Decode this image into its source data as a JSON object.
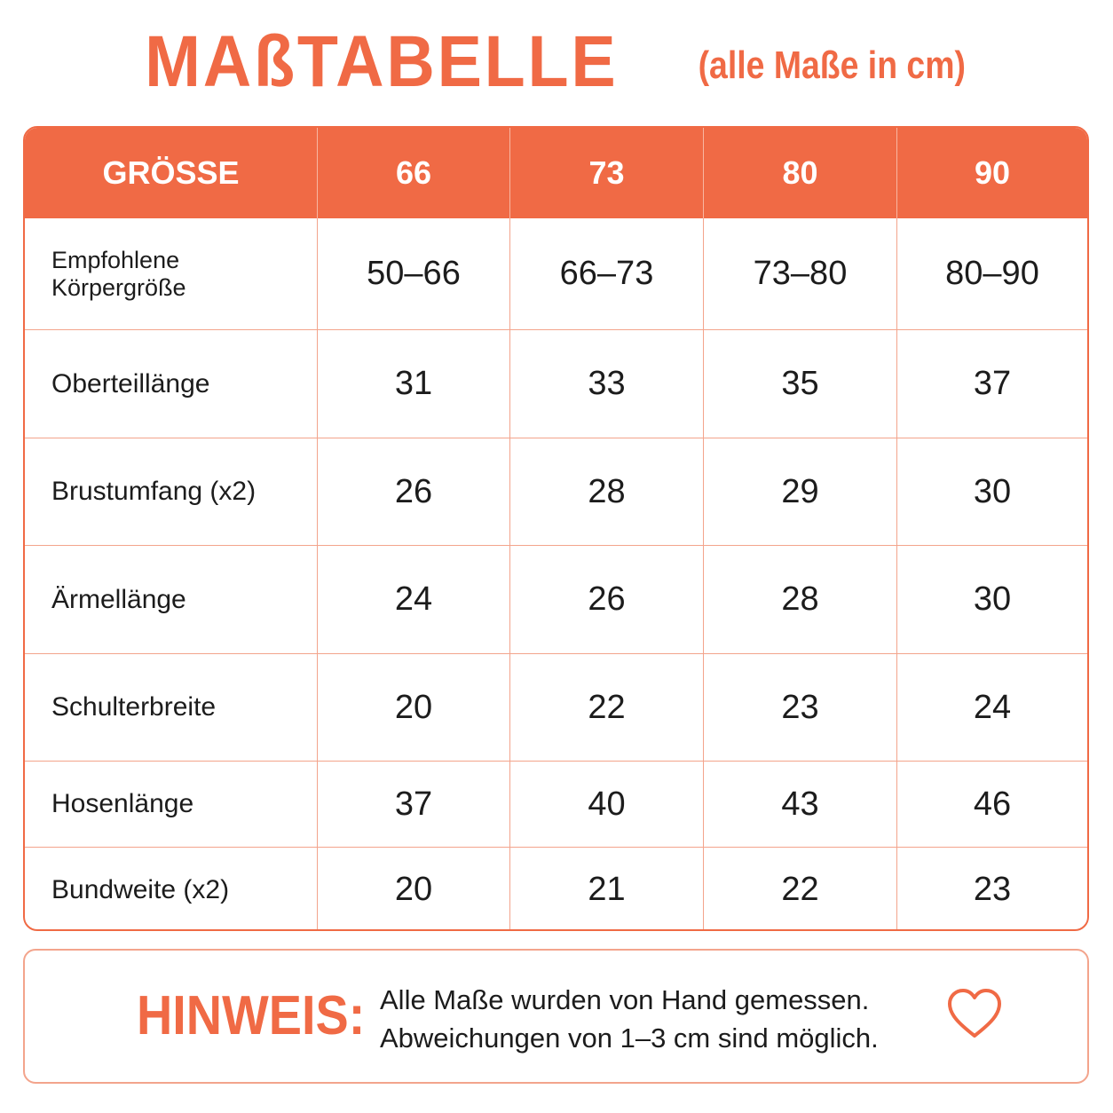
{
  "title": {
    "main": "MAßTABELLE",
    "sub": "(alle Maße in cm)"
  },
  "table": {
    "header": [
      "GRÖSSE",
      "66",
      "73",
      "80",
      "90"
    ],
    "rows": [
      {
        "label": "Empfohlene Körpergröße",
        "values": [
          "50–66",
          "66–73",
          "73–80",
          "80–90"
        ]
      },
      {
        "label": "Oberteillänge",
        "values": [
          "31",
          "33",
          "35",
          "37"
        ]
      },
      {
        "label": "Brustumfang (x2)",
        "values": [
          "26",
          "28",
          "29",
          "30"
        ]
      },
      {
        "label": "Ärmellänge",
        "values": [
          "24",
          "26",
          "28",
          "30"
        ]
      },
      {
        "label": "Schulterbreite",
        "values": [
          "20",
          "22",
          "23",
          "24"
        ]
      },
      {
        "label": "Hosenlänge",
        "values": [
          "37",
          "40",
          "43",
          "46"
        ]
      },
      {
        "label": "Bundweite (x2)",
        "values": [
          "20",
          "21",
          "22",
          "23"
        ]
      }
    ]
  },
  "note": {
    "label": "HINWEIS:",
    "line1": "Alle Maße wurden von Hand gemessen.",
    "line2": "Abweichungen von 1–3 cm sind möglich.",
    "icon": "heart-icon"
  },
  "colors": {
    "accent": "#f06a45",
    "grid_line": "#f3a48c"
  }
}
